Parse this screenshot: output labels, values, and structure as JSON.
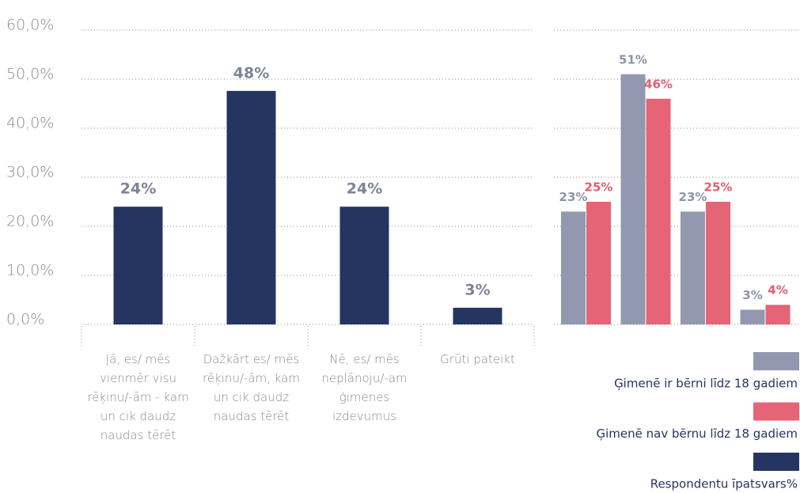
{
  "chart_data": [
    {
      "type": "bar",
      "categories": [
        "Jā, es/ mēs vienmēr visu rēķinu/-ām - kam un cik daudz naudas tērēt",
        "Dažkārt es/ mēs rēķinu/-ām, kam un cik daudz naudas tērēt",
        "Nē, es/ mēs neplānoju/-am ģimenes izdevumus",
        "Grūti pateikt"
      ],
      "series": [
        {
          "name": "Respondentu īpatsvars%",
          "color": "#253561",
          "values": [
            24,
            47.6,
            24,
            3.4
          ],
          "value_labels": [
            "24%",
            "48%",
            "24%",
            "3%"
          ]
        }
      ],
      "ylim": [
        0,
        60
      ],
      "yticks": [
        {
          "value": 0,
          "label": "0,0%"
        },
        {
          "value": 10,
          "label": "10,0%"
        },
        {
          "value": 20,
          "label": "20,0%"
        },
        {
          "value": 30,
          "label": "30,0%"
        },
        {
          "value": 40,
          "label": "40,0%"
        },
        {
          "value": 50,
          "label": "50,0%"
        },
        {
          "value": 60,
          "label": "60,0%"
        }
      ],
      "grid": true
    },
    {
      "type": "grouped_bar",
      "categories": [
        null,
        null,
        null,
        null
      ],
      "series": [
        {
          "name": "Ģimenē ir bērni līdz 18 gadiem",
          "color": "#9298b0",
          "values": [
            23,
            51,
            23,
            3
          ],
          "value_labels": [
            "23%",
            "51%",
            "23%",
            "3%"
          ]
        },
        {
          "name": "Ģimenē nav bērnu līdz 18 gadiem",
          "color": "#e56476",
          "values": [
            25,
            46,
            25,
            4
          ],
          "value_labels": [
            "25%",
            "46%",
            "25%",
            "4%"
          ]
        }
      ],
      "ylim": [
        0,
        60
      ],
      "yticks": [
        0,
        10,
        20,
        30,
        40,
        50,
        60
      ],
      "grid": true
    }
  ]
}
